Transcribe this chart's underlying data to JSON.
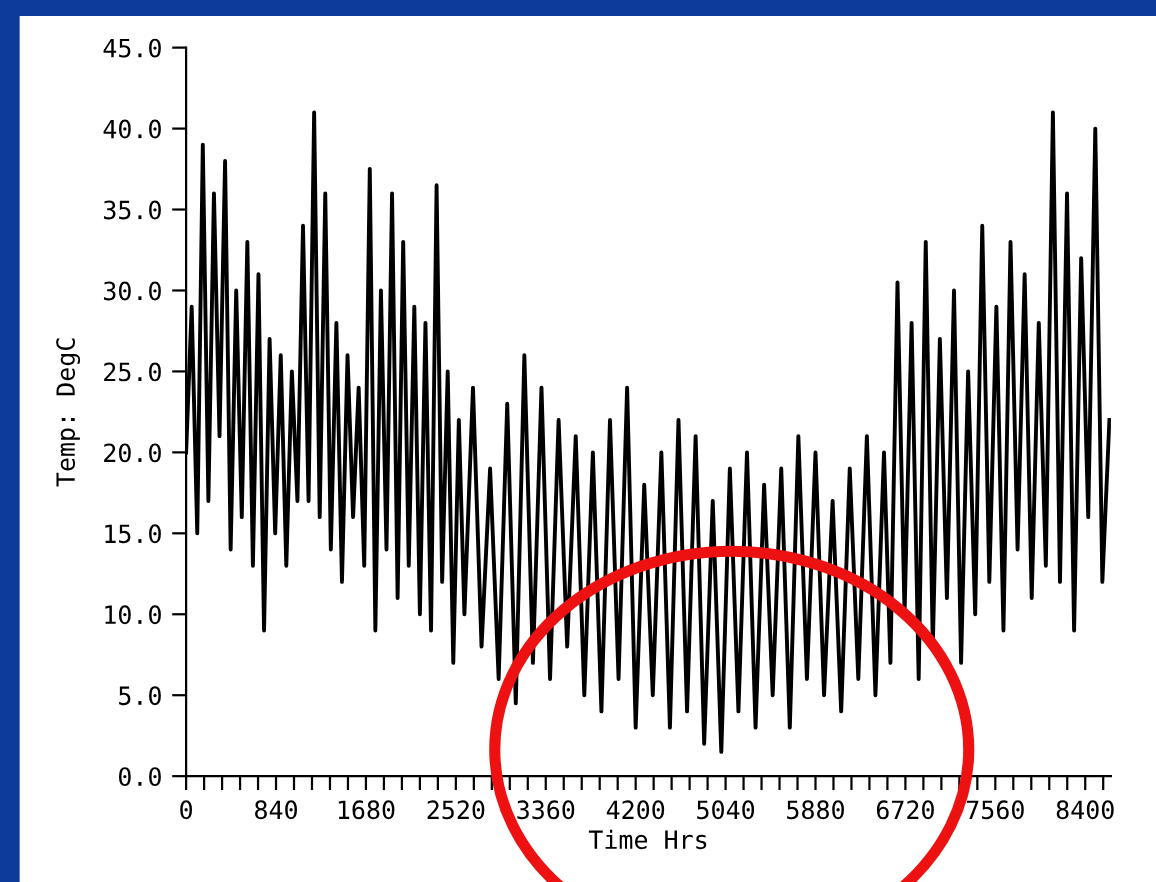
{
  "chart_data": {
    "type": "line",
    "xlabel": "Time Hrs",
    "ylabel": "Temp: DegC",
    "x": [
      0,
      52,
      104,
      156,
      208,
      260,
      312,
      364,
      416,
      468,
      520,
      572,
      624,
      676,
      728,
      780,
      832,
      884,
      936,
      988,
      1040,
      1092,
      1144,
      1196,
      1248,
      1300,
      1352,
      1404,
      1456,
      1508,
      1560,
      1612,
      1664,
      1716,
      1768,
      1820,
      1872,
      1924,
      1976,
      2028,
      2080,
      2132,
      2184,
      2236,
      2288,
      2340,
      2392,
      2444,
      2496,
      2548,
      2600,
      2680,
      2760,
      2840,
      2920,
      3000,
      3080,
      3160,
      3240,
      3320,
      3400,
      3480,
      3560,
      3640,
      3720,
      3800,
      3880,
      3960,
      4040,
      4120,
      4200,
      4280,
      4360,
      4440,
      4520,
      4600,
      4680,
      4760,
      4840,
      4920,
      5000,
      5080,
      5160,
      5240,
      5320,
      5400,
      5480,
      5560,
      5640,
      5720,
      5800,
      5880,
      5960,
      6040,
      6120,
      6200,
      6280,
      6360,
      6440,
      6520,
      6580,
      6646,
      6712,
      6778,
      6844,
      6910,
      6976,
      7042,
      7108,
      7174,
      7240,
      7306,
      7372,
      7438,
      7504,
      7570,
      7636,
      7702,
      7768,
      7834,
      7900,
      7966,
      8032,
      8098,
      8164,
      8230,
      8296,
      8362,
      8428,
      8494,
      8560,
      8626
    ],
    "series": [
      {
        "color": "#000000",
        "values": [
          20,
          29,
          15,
          39,
          17,
          36,
          21,
          38,
          14,
          30,
          16,
          33,
          13,
          31,
          9,
          27,
          15,
          26,
          13,
          25,
          17,
          34,
          17,
          41,
          16,
          36,
          14,
          28,
          12,
          26,
          16,
          24,
          13,
          37.5,
          9,
          30,
          14,
          36,
          11,
          33,
          13,
          29,
          10,
          28,
          9,
          36.5,
          12,
          25,
          7,
          22,
          10,
          24,
          8,
          19,
          6,
          23,
          4.5,
          26,
          7,
          24,
          6,
          22,
          8,
          21,
          5,
          20,
          4,
          22,
          6,
          24,
          3,
          18,
          5,
          20,
          3,
          22,
          4,
          21,
          2,
          17,
          1.5,
          19,
          4,
          20,
          3,
          18,
          5,
          19,
          3,
          21,
          6,
          20,
          5,
          17,
          4,
          19,
          6,
          21,
          5,
          20,
          7,
          30.5,
          10,
          28,
          6,
          33,
          8,
          27,
          11,
          30,
          7,
          25,
          10,
          34,
          12,
          29,
          9,
          33,
          14,
          31,
          11,
          28,
          13,
          41,
          12,
          36,
          9,
          32,
          16,
          40,
          12,
          22
        ]
      }
    ],
    "xlim": [
      0,
      8640
    ],
    "xticks": [
      0,
      {
        "value": 168,
        "label": null
      },
      {
        "value": 336,
        "label": null
      },
      {
        "value": 504,
        "label": null
      },
      {
        "value": 672,
        "label": null
      },
      840,
      {
        "value": 1008,
        "label": null
      },
      {
        "value": 1176,
        "label": null
      },
      {
        "value": 1344,
        "label": null
      },
      {
        "value": 1512,
        "label": null
      },
      1680,
      {
        "value": 1848,
        "label": null
      },
      {
        "value": 2016,
        "label": null
      },
      {
        "value": 2184,
        "label": null
      },
      {
        "value": 2352,
        "label": null
      },
      2520,
      {
        "value": 2688,
        "label": null
      },
      {
        "value": 2856,
        "label": null
      },
      {
        "value": 3024,
        "label": null
      },
      {
        "value": 3192,
        "label": null
      },
      3360,
      {
        "value": 3528,
        "label": null
      },
      {
        "value": 3696,
        "label": null
      },
      {
        "value": 3864,
        "label": null
      },
      {
        "value": 4032,
        "label": null
      },
      4200,
      {
        "value": 4368,
        "label": null
      },
      {
        "value": 4536,
        "label": null
      },
      {
        "value": 4704,
        "label": null
      },
      {
        "value": 4872,
        "label": null
      },
      5040,
      {
        "value": 5208,
        "label": null
      },
      {
        "value": 5376,
        "label": null
      },
      {
        "value": 5544,
        "label": null
      },
      {
        "value": 5712,
        "label": null
      },
      5880,
      {
        "value": 6048,
        "label": null
      },
      {
        "value": 6216,
        "label": null
      },
      {
        "value": 6384,
        "label": null
      },
      {
        "value": 6552,
        "label": null
      },
      6720,
      {
        "value": 6888,
        "label": null
      },
      {
        "value": 7056,
        "label": null
      },
      {
        "value": 7224,
        "label": null
      },
      {
        "value": 7392,
        "label": null
      },
      7560,
      {
        "value": 7728,
        "label": null
      },
      {
        "value": 7896,
        "label": null
      },
      {
        "value": 8064,
        "label": null
      },
      {
        "value": 8232,
        "label": null
      },
      8400,
      {
        "value": 8568,
        "label": null
      }
    ],
    "ylim": [
      0,
      45
    ],
    "yticks": [
      {
        "value": 0,
        "label": "0.0"
      },
      {
        "value": 5,
        "label": "5.0"
      },
      {
        "value": 10,
        "label": "10.0"
      },
      {
        "value": 15,
        "label": "15.0"
      },
      {
        "value": 20,
        "label": "20.0"
      },
      {
        "value": 25,
        "label": "25.0"
      },
      {
        "value": 30,
        "label": "30.0"
      },
      {
        "value": 35,
        "label": "35.0"
      },
      {
        "value": 40,
        "label": "40.0"
      },
      {
        "value": 45,
        "label": "45.0"
      }
    ],
    "grid": false,
    "legend": false,
    "marker": "none",
    "line_style": "solid"
  }
}
